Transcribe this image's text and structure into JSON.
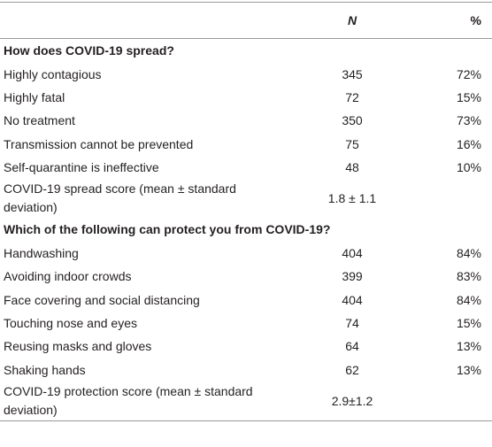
{
  "header": {
    "n": "N",
    "pct": "%"
  },
  "sections": [
    {
      "title": "How does COVID-19 spread?",
      "rows": [
        [
          "Highly contagious",
          345,
          "72%"
        ],
        [
          "Highly fatal",
          72,
          "15%"
        ],
        [
          "No treatment",
          350,
          "73%"
        ],
        [
          "Transmission cannot be prevented",
          75,
          "16%"
        ],
        [
          "Self-quarantine is ineffective",
          48,
          "10%"
        ],
        [
          "COVID-19 spread score (mean ± standard deviation)",
          "1.8 ± 1.1"
        ]
      ]
    },
    {
      "title": "Which of the following can protect you from COVID-19?",
      "rows": [
        [
          "Handwashing",
          404,
          "84%"
        ],
        [
          "Avoiding indoor crowds",
          399,
          "83%"
        ],
        [
          "Face covering and social distancing",
          404,
          "84%"
        ],
        [
          "Touching nose and eyes",
          74,
          "15%"
        ],
        [
          "Reusing masks and gloves",
          64,
          "13%"
        ],
        [
          "Shaking hands",
          62,
          "13%"
        ],
        [
          "COVID-19 protection score (mean ± standard deviation)",
          "2.9±1.2"
        ]
      ]
    }
  ]
}
